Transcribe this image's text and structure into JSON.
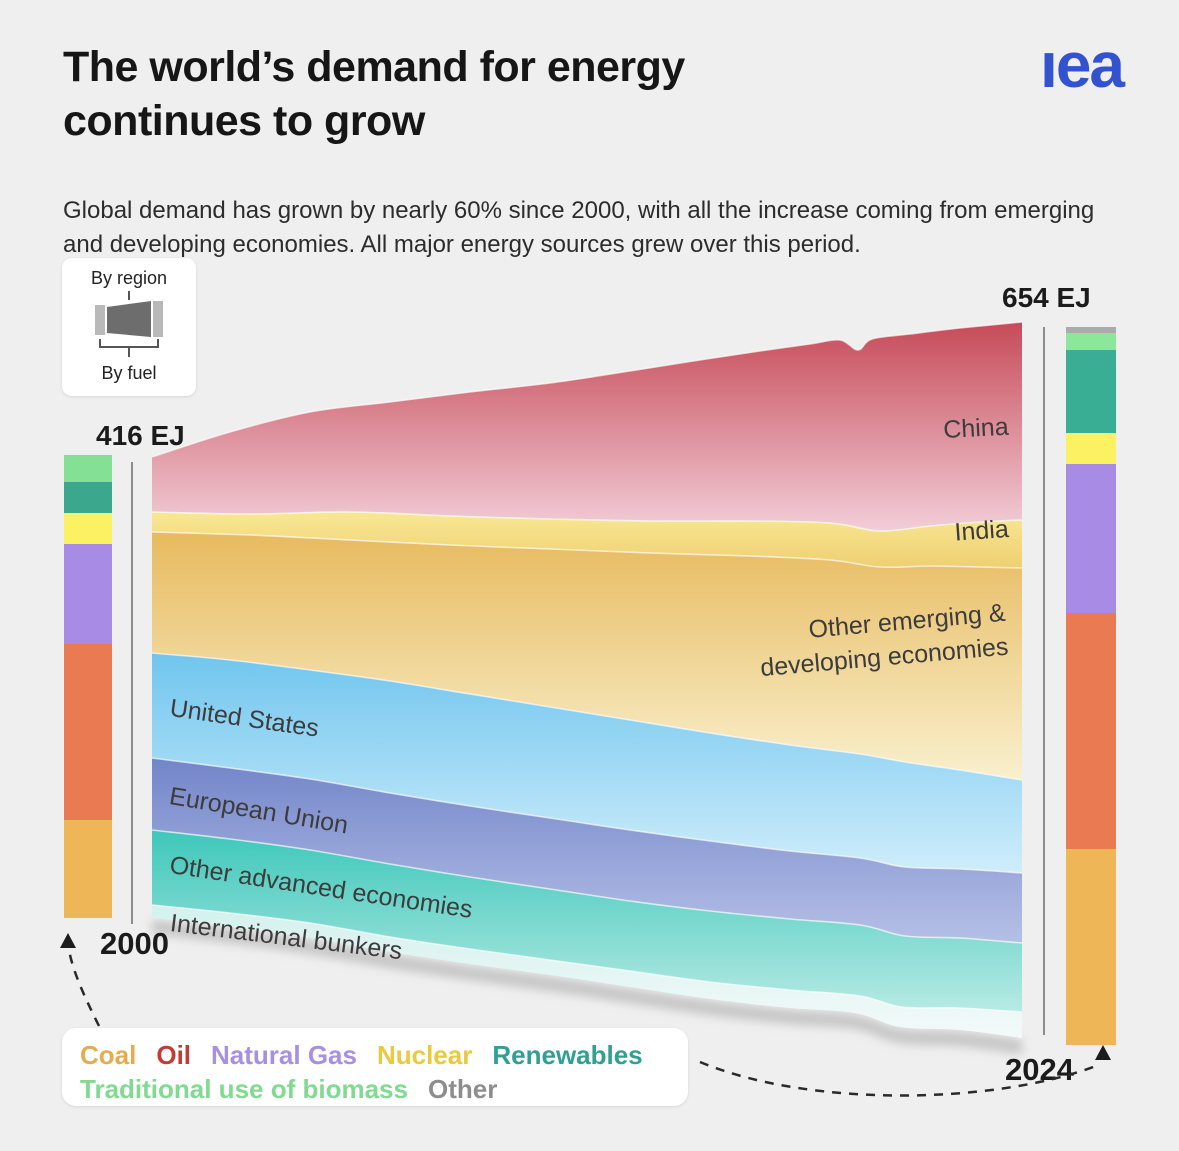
{
  "header": {
    "title": "The world’s demand for energy continues to grow",
    "title_line1": "The world’s demand for energy",
    "title_line2": "continues to grow",
    "subtitle": "Global demand has grown by nearly 60% since 2000, with all the increase coming from emerging and developing economies. All major energy sources grew over this period.",
    "logo_text": "ıea",
    "logo_color": "#3252d0"
  },
  "toggle": {
    "top_label": "By region",
    "bottom_label": "By fuel"
  },
  "chart_data": {
    "type": "area",
    "subtype": "stacked-stream-by-region-with-fuel-bars",
    "unit": "EJ",
    "x": [
      2000,
      2024
    ],
    "x_labels": {
      "start": "2000",
      "end": "2024"
    },
    "totals": {
      "y2000": 416,
      "y2024": 654
    },
    "total_labels": {
      "start": "416 EJ",
      "end": "654 EJ"
    },
    "regions": [
      {
        "name": "China",
        "values_EJ": {
          "y2000": 50,
          "y2024": 181
        },
        "gradient": {
          "top": "#c64b58",
          "bottom": "#f2ced8"
        }
      },
      {
        "name": "India",
        "values_EJ": {
          "y2000": 18,
          "y2024": 44
        },
        "gradient": {
          "top": "#f8e893",
          "bottom": "#efcf73"
        }
      },
      {
        "name": "Other emerging & developing economies",
        "values_EJ": {
          "y2000": 109,
          "y2024": 193
        },
        "gradient": {
          "top": "#e7ba5e",
          "bottom": "#f9f0ce"
        }
      },
      {
        "name": "United States",
        "values_EJ": {
          "y2000": 95,
          "y2024": 85
        },
        "gradient": {
          "top": "#70c5ee",
          "bottom": "#cfedfb"
        }
      },
      {
        "name": "European Union",
        "values_EJ": {
          "y2000": 65,
          "y2024": 64
        },
        "gradient": {
          "top": "#7285c9",
          "bottom": "#b6c0e6"
        }
      },
      {
        "name": "Other advanced economies",
        "values_EJ": {
          "y2000": 68,
          "y2024": 63
        },
        "gradient": {
          "top": "#3ec7ba",
          "bottom": "#b7eae4"
        }
      },
      {
        "name": "International bunkers",
        "values_EJ": {
          "y2000": 11,
          "y2024": 24
        },
        "gradient": {
          "top": "#d4f1ed",
          "bottom": "#f3faf9"
        }
      }
    ],
    "fuel_mix_2000": [
      {
        "fuel": "Traditional use of biomass",
        "value_EJ": 24,
        "color": "#84e095"
      },
      {
        "fuel": "Renewables",
        "value_EJ": 28,
        "color": "#3ba88e"
      },
      {
        "fuel": "Nuclear",
        "value_EJ": 28,
        "color": "#fbf163"
      },
      {
        "fuel": "Natural Gas",
        "value_EJ": 90,
        "color": "#a78be5"
      },
      {
        "fuel": "Oil",
        "value_EJ": 158,
        "color": "#e97a52"
      },
      {
        "fuel": "Coal",
        "value_EJ": 88,
        "color": "#efb657"
      }
    ],
    "fuel_mix_2024": [
      {
        "fuel": "Other",
        "value_EJ": 5,
        "color": "#ababab"
      },
      {
        "fuel": "Traditional use of biomass",
        "value_EJ": 16,
        "color": "#8be79b"
      },
      {
        "fuel": "Renewables",
        "value_EJ": 76,
        "color": "#3aae94"
      },
      {
        "fuel": "Nuclear",
        "value_EJ": 28,
        "color": "#fbf163"
      },
      {
        "fuel": "Natural Gas",
        "value_EJ": 136,
        "color": "#a78be5"
      },
      {
        "fuel": "Oil",
        "value_EJ": 215,
        "color": "#e97a52"
      },
      {
        "fuel": "Coal",
        "value_EJ": 178,
        "color": "#efb657"
      }
    ],
    "legend_position": "bottom-left",
    "grid": false
  },
  "legend": {
    "rows": [
      [
        {
          "label": "Coal",
          "color": "#e2ac4f"
        },
        {
          "label": "Oil",
          "color": "#c33c33"
        },
        {
          "label": "Natural Gas",
          "color": "#a78fe2"
        },
        {
          "label": "Nuclear",
          "color": "#e8c93f"
        },
        {
          "label": "Renewables",
          "color": "#2fa092"
        }
      ],
      [
        {
          "label": "Traditional use of biomass",
          "color": "#80da90"
        },
        {
          "label": "Other",
          "color": "#8d8d8d"
        }
      ]
    ]
  }
}
